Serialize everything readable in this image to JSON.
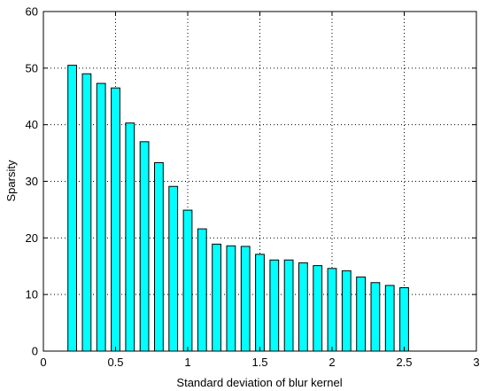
{
  "chart_data": {
    "type": "bar",
    "title": "",
    "xlabel": "Standard deviation of blur kernel",
    "ylabel": "Sparsity",
    "xlim": [
      0,
      3
    ],
    "ylim": [
      0,
      60
    ],
    "xticks": [
      "0",
      "0.5",
      "1",
      "1.5",
      "2",
      "2.5",
      "3"
    ],
    "yticks": [
      "0",
      "10",
      "20",
      "30",
      "40",
      "50",
      "60"
    ],
    "grid": true,
    "bar_color": "#00ffff",
    "x": [
      0.2,
      0.3,
      0.4,
      0.5,
      0.6,
      0.7,
      0.8,
      0.9,
      1.0,
      1.1,
      1.2,
      1.3,
      1.4,
      1.5,
      1.6,
      1.7,
      1.8,
      1.9,
      2.0,
      2.1,
      2.2,
      2.3,
      2.4,
      2.5
    ],
    "values": [
      50.5,
      49,
      47.3,
      46.5,
      40.3,
      37,
      33.3,
      29.1,
      24.9,
      21.6,
      18.9,
      18.6,
      18.5,
      17.1,
      16.1,
      16.1,
      15.6,
      15.1,
      14.6,
      14.2,
      13.1,
      12.1,
      11.6,
      11.2
    ]
  }
}
